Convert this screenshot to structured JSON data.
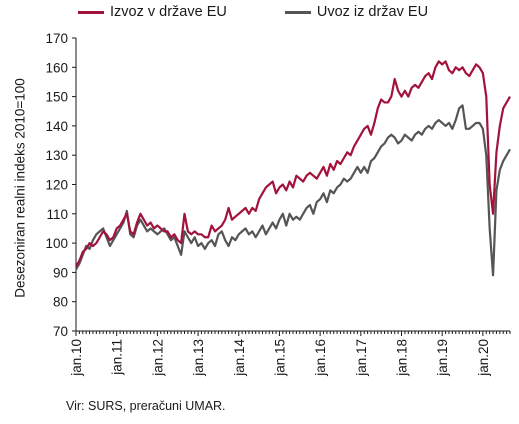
{
  "chart_data": {
    "type": "line",
    "ylabel": "Desezoniran realni indeks 2010=100",
    "xlabel": "",
    "ylim": [
      70,
      170
    ],
    "yticks": [
      70,
      80,
      90,
      100,
      110,
      120,
      130,
      140,
      150,
      160,
      170
    ],
    "xlim": [
      "2010-01",
      "2020-09"
    ],
    "x_tick_labels": [
      "jan.10",
      "jan.11",
      "jan.12",
      "jan.13",
      "jan.14",
      "jan.15",
      "jan.16",
      "jan.17",
      "jan.18",
      "jan.19",
      "jan.20"
    ],
    "grid": false,
    "legend_position": "top",
    "frequency": "monthly",
    "series": [
      {
        "name": "Izvoz v države EU",
        "color": "#a3123a",
        "values": [
          92,
          94,
          97,
          98,
          100,
          99,
          100,
          102,
          104,
          103,
          101,
          102,
          105,
          106,
          108,
          110,
          104,
          103,
          107,
          110,
          108,
          106,
          107,
          105,
          106,
          105,
          104,
          104,
          102,
          103,
          101,
          100,
          110,
          104,
          103,
          104,
          103,
          103,
          102,
          102,
          106,
          104,
          105,
          106,
          108,
          112,
          108,
          109,
          110,
          111,
          112,
          110,
          112,
          111,
          115,
          117,
          119,
          120,
          121,
          117,
          119,
          120,
          118,
          121,
          119,
          123,
          122,
          121,
          123,
          124,
          123,
          122,
          124,
          126,
          123,
          127,
          125,
          128,
          127,
          129,
          131,
          130,
          133,
          135,
          137,
          139,
          140,
          137,
          141,
          146,
          149,
          148,
          148,
          150,
          156,
          152,
          150,
          152,
          150,
          153,
          154,
          153,
          155,
          157,
          158,
          156,
          160,
          162,
          161,
          162,
          159,
          158,
          160,
          159,
          160,
          158,
          157,
          159,
          161,
          160,
          158,
          150,
          120,
          110,
          131,
          140,
          146,
          148,
          150
        ]
      },
      {
        "name": "Uvoz iz držav EU",
        "color": "#555555",
        "values": [
          91,
          93,
          96,
          99,
          98,
          101,
          103,
          104,
          105,
          102,
          99,
          101,
          103,
          105,
          107,
          111,
          103,
          102,
          106,
          108,
          106,
          104,
          105,
          104,
          103,
          104,
          105,
          103,
          101,
          102,
          99,
          96,
          104,
          102,
          100,
          102,
          99,
          100,
          98,
          100,
          101,
          99,
          103,
          104,
          101,
          99,
          102,
          101,
          103,
          104,
          105,
          103,
          104,
          102,
          104,
          106,
          103,
          105,
          107,
          105,
          108,
          110,
          106,
          110,
          108,
          109,
          108,
          110,
          112,
          113,
          110,
          114,
          115,
          117,
          114,
          118,
          117,
          119,
          120,
          122,
          121,
          122,
          124,
          126,
          124,
          126,
          124,
          128,
          129,
          131,
          133,
          134,
          136,
          137,
          136,
          134,
          135,
          137,
          136,
          135,
          137,
          138,
          137,
          139,
          140,
          139,
          141,
          142,
          141,
          140,
          141,
          139,
          142,
          146,
          147,
          139,
          139,
          140,
          141,
          141,
          139,
          130,
          105,
          89,
          118,
          125,
          128,
          130,
          132
        ]
      }
    ]
  },
  "source_note": "Vir: SURS, preračuni UMAR."
}
